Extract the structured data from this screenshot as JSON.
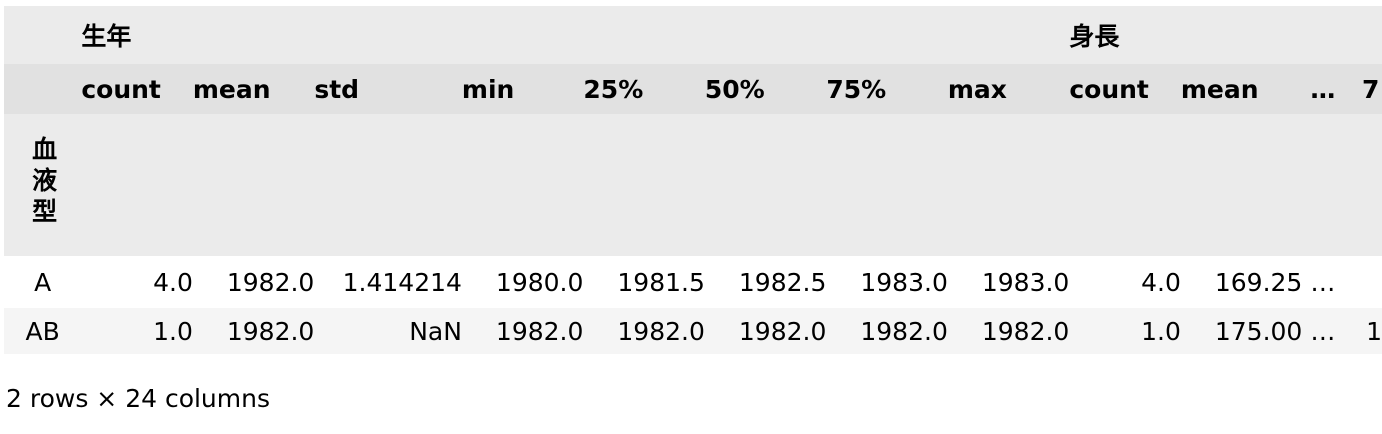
{
  "header": {
    "top_groups": [
      "生年",
      "身長"
    ],
    "columns": [
      "count",
      "mean",
      "std",
      "min",
      "25%",
      "50%",
      "75%",
      "max",
      "count",
      "mean",
      "…",
      "7"
    ],
    "index_name": "血液型"
  },
  "rows": [
    {
      "index": "A",
      "values": [
        "4.0",
        "1982.0",
        "1.414214",
        "1980.0",
        "1981.5",
        "1982.5",
        "1983.0",
        "1983.0",
        "4.0",
        "169.25",
        "…",
        ""
      ]
    },
    {
      "index": "AB",
      "values": [
        "1.0",
        "1982.0",
        "NaN",
        "1982.0",
        "1982.0",
        "1982.0",
        "1982.0",
        "1982.0",
        "1.0",
        "175.00",
        "…",
        "1"
      ]
    }
  ],
  "footer": {
    "summary": "2 rows × 24 columns"
  }
}
